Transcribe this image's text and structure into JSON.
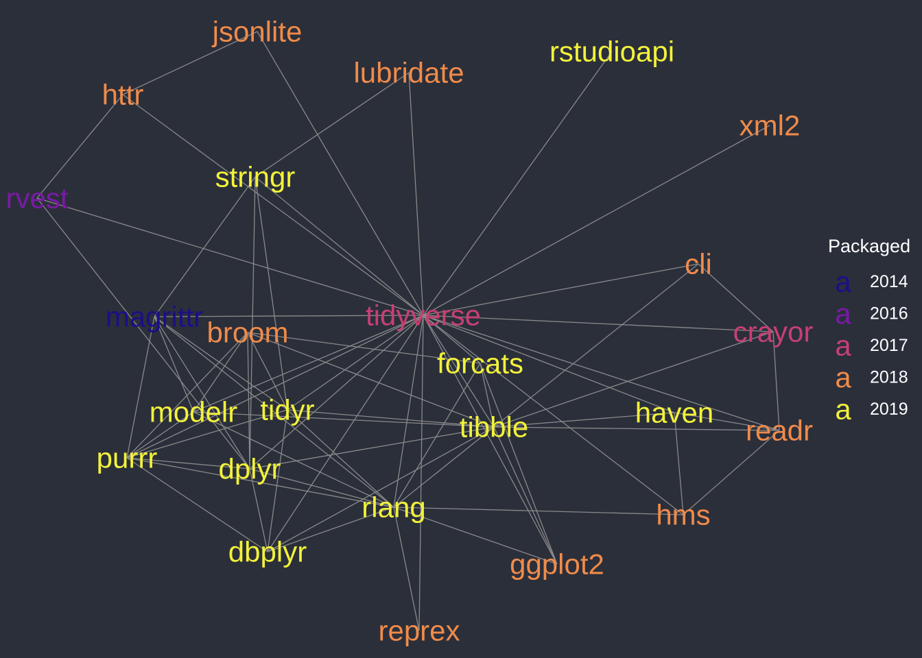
{
  "legend": {
    "title": "Packaged",
    "key_glyph": "a",
    "entries": [
      {
        "year": "2014",
        "color": "#1a0f87"
      },
      {
        "year": "2016",
        "color": "#7a1aa6"
      },
      {
        "year": "2017",
        "color": "#c83f73"
      },
      {
        "year": "2018",
        "color": "#f08b4a"
      },
      {
        "year": "2019",
        "color": "#f2f23a"
      }
    ]
  },
  "nodes": [
    {
      "id": "jsonlite",
      "label": "jsonlite",
      "year": "2018"
    },
    {
      "id": "lubridate",
      "label": "lubridate",
      "year": "2018"
    },
    {
      "id": "rstudioapi",
      "label": "rstudioapi",
      "year": "2019"
    },
    {
      "id": "httr",
      "label": "httr",
      "year": "2018"
    },
    {
      "id": "xml2",
      "label": "xml2",
      "year": "2018"
    },
    {
      "id": "stringr",
      "label": "stringr",
      "year": "2019"
    },
    {
      "id": "rvest",
      "label": "rvest",
      "year": "2016"
    },
    {
      "id": "cli",
      "label": "cli",
      "year": "2018"
    },
    {
      "id": "magrittr",
      "label": "magrittr",
      "year": "2014"
    },
    {
      "id": "tidyverse",
      "label": "tidyverse",
      "year": "2017"
    },
    {
      "id": "broom",
      "label": "broom",
      "year": "2018"
    },
    {
      "id": "crayor",
      "label": "crayor",
      "year": "2017"
    },
    {
      "id": "forcats",
      "label": "forcats",
      "year": "2019"
    },
    {
      "id": "modelr",
      "label": "modelr",
      "year": "2019"
    },
    {
      "id": "tidyr",
      "label": "tidyr",
      "year": "2019"
    },
    {
      "id": "haven",
      "label": "haven",
      "year": "2019"
    },
    {
      "id": "tibble",
      "label": "tibble",
      "year": "2019"
    },
    {
      "id": "readr",
      "label": "readr",
      "year": "2018"
    },
    {
      "id": "purrr",
      "label": "purrr",
      "year": "2019"
    },
    {
      "id": "dplyr",
      "label": "dplyr",
      "year": "2019"
    },
    {
      "id": "rlang",
      "label": "rlang",
      "year": "2019"
    },
    {
      "id": "hms",
      "label": "hms",
      "year": "2018"
    },
    {
      "id": "dbplyr",
      "label": "dbplyr",
      "year": "2019"
    },
    {
      "id": "ggplot2",
      "label": "ggplot2",
      "year": "2018"
    },
    {
      "id": "reprex",
      "label": "reprex",
      "year": "2018"
    }
  ],
  "edges": [
    [
      "jsonlite",
      "httr"
    ],
    [
      "jsonlite",
      "tidyverse"
    ],
    [
      "httr",
      "rvest"
    ],
    [
      "httr",
      "tidyverse"
    ],
    [
      "lubridate",
      "stringr"
    ],
    [
      "lubridate",
      "tidyverse"
    ],
    [
      "rstudioapi",
      "tidyverse"
    ],
    [
      "xml2",
      "tidyverse"
    ],
    [
      "rvest",
      "tidyverse"
    ],
    [
      "rvest",
      "dplyr"
    ],
    [
      "stringr",
      "tidyverse"
    ],
    [
      "stringr",
      "magrittr"
    ],
    [
      "stringr",
      "dplyr"
    ],
    [
      "stringr",
      "tidyr"
    ],
    [
      "cli",
      "tidyverse"
    ],
    [
      "cli",
      "crayor"
    ],
    [
      "cli",
      "tibble"
    ],
    [
      "magrittr",
      "tidyverse"
    ],
    [
      "magrittr",
      "purrr"
    ],
    [
      "magrittr",
      "dplyr"
    ],
    [
      "magrittr",
      "rlang"
    ],
    [
      "magrittr",
      "modelr"
    ],
    [
      "magrittr",
      "tidyr"
    ],
    [
      "tidyverse",
      "crayor"
    ],
    [
      "tidyverse",
      "readr"
    ],
    [
      "tidyverse",
      "haven"
    ],
    [
      "tidyverse",
      "modelr"
    ],
    [
      "tidyverse",
      "tidyr"
    ],
    [
      "tidyverse",
      "purrr"
    ],
    [
      "tidyverse",
      "dplyr"
    ],
    [
      "tidyverse",
      "dbplyr"
    ],
    [
      "tidyverse",
      "reprex"
    ],
    [
      "tidyverse",
      "rlang"
    ],
    [
      "tidyverse",
      "tibble"
    ],
    [
      "tidyverse",
      "ggplot2"
    ],
    [
      "tidyverse",
      "hms"
    ],
    [
      "tidyverse",
      "forcats"
    ],
    [
      "broom",
      "tibble"
    ],
    [
      "broom",
      "purrr"
    ],
    [
      "broom",
      "dplyr"
    ],
    [
      "broom",
      "tidyr"
    ],
    [
      "broom",
      "modelr"
    ],
    [
      "broom",
      "forcats"
    ],
    [
      "crayor",
      "readr"
    ],
    [
      "crayor",
      "tibble"
    ],
    [
      "forcats",
      "rlang"
    ],
    [
      "forcats",
      "tibble"
    ],
    [
      "forcats",
      "ggplot2"
    ],
    [
      "modelr",
      "tibble"
    ],
    [
      "modelr",
      "rlang"
    ],
    [
      "modelr",
      "purrr"
    ],
    [
      "tidyr",
      "tibble"
    ],
    [
      "tidyr",
      "rlang"
    ],
    [
      "tidyr",
      "purrr"
    ],
    [
      "tidyr",
      "dbplyr"
    ],
    [
      "haven",
      "hms"
    ],
    [
      "haven",
      "readr"
    ],
    [
      "haven",
      "tibble"
    ],
    [
      "tibble",
      "readr"
    ],
    [
      "tibble",
      "rlang"
    ],
    [
      "tibble",
      "dplyr"
    ],
    [
      "tibble",
      "dbplyr"
    ],
    [
      "tibble",
      "ggplot2"
    ],
    [
      "readr",
      "hms"
    ],
    [
      "purrr",
      "rlang"
    ],
    [
      "purrr",
      "dplyr"
    ],
    [
      "purrr",
      "dbplyr"
    ],
    [
      "dplyr",
      "rlang"
    ],
    [
      "dplyr",
      "dbplyr"
    ],
    [
      "rlang",
      "hms"
    ],
    [
      "rlang",
      "ggplot2"
    ],
    [
      "rlang",
      "dbplyr"
    ],
    [
      "rlang",
      "reprex"
    ]
  ]
}
